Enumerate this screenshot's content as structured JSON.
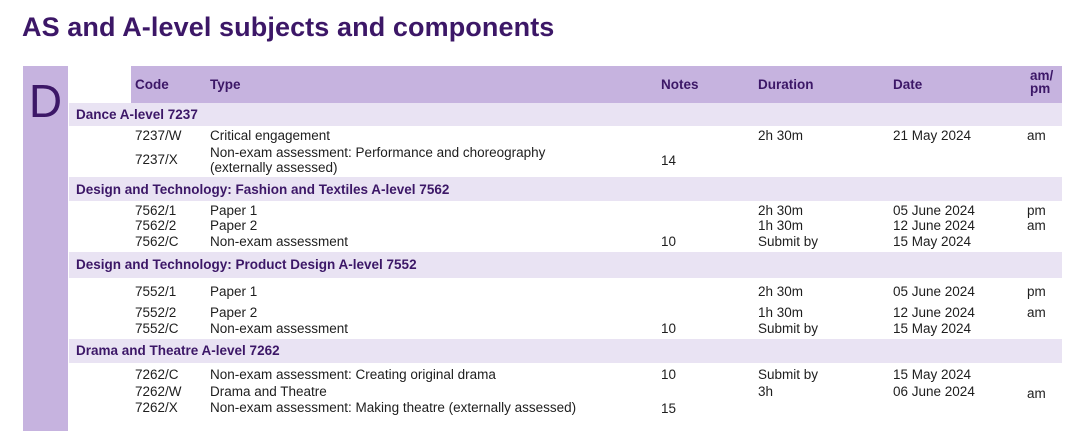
{
  "page_title": "AS and A-level subjects and components",
  "section_letter": "D",
  "columns": {
    "code": "Code",
    "type": "Type",
    "notes": "Notes",
    "duration": "Duration",
    "date": "Date",
    "ampm": "am/\npm"
  },
  "groups": [
    {
      "title": "Dance A-level  7237",
      "rows": [
        {
          "code": "7237/W",
          "type": "Critical engagement",
          "notes": "",
          "duration": "2h 30m",
          "date": "21 May 2024",
          "ampm": "am"
        },
        {
          "code": "7237/X",
          "type": "Non-exam assessment: Performance and choreography (externally assessed)",
          "notes": "14",
          "duration": "",
          "date": "",
          "ampm": ""
        }
      ]
    },
    {
      "title": "Design and Technology: Fashion and Textiles A-level  7562",
      "rows": [
        {
          "code": "7562/1",
          "type": "Paper 1",
          "notes": "",
          "duration": "2h 30m",
          "date": "05 June 2024",
          "ampm": "pm"
        },
        {
          "code": "7562/2",
          "type": "Paper 2",
          "notes": "",
          "duration": "1h 30m",
          "date": "12 June 2024",
          "ampm": "am"
        },
        {
          "code": "7562/C",
          "type": "Non-exam assessment",
          "notes": "10",
          "duration": "Submit by",
          "date": "15 May 2024",
          "ampm": ""
        }
      ]
    },
    {
      "title": "Design and Technology: Product Design A-level  7552",
      "rows": [
        {
          "code": "7552/1",
          "type": "Paper 1",
          "notes": "",
          "duration": "2h 30m",
          "date": "05 June 2024",
          "ampm": "pm"
        },
        {
          "code": "7552/2",
          "type": "Paper 2",
          "notes": "",
          "duration": "1h 30m",
          "date": "12 June 2024",
          "ampm": "am"
        },
        {
          "code": "7552/C",
          "type": "Non-exam assessment",
          "notes": "10",
          "duration": "Submit by",
          "date": "15 May 2024",
          "ampm": ""
        }
      ]
    },
    {
      "title": "Drama and Theatre A-level  7262",
      "rows": [
        {
          "code": "7262/C",
          "type": "Non-exam assessment: Creating original drama",
          "notes": "10",
          "duration": "Submit by",
          "date": "15 May 2024",
          "ampm": ""
        },
        {
          "code": "7262/W",
          "type": "Drama and Theatre",
          "notes": "",
          "duration": "3h",
          "date": "06 June 2024",
          "ampm": "am"
        },
        {
          "code": "7262/X",
          "type": "Non-exam assessment: Making theatre (externally assessed)",
          "notes": "15",
          "duration": "",
          "date": "",
          "ampm": ""
        }
      ]
    }
  ]
}
